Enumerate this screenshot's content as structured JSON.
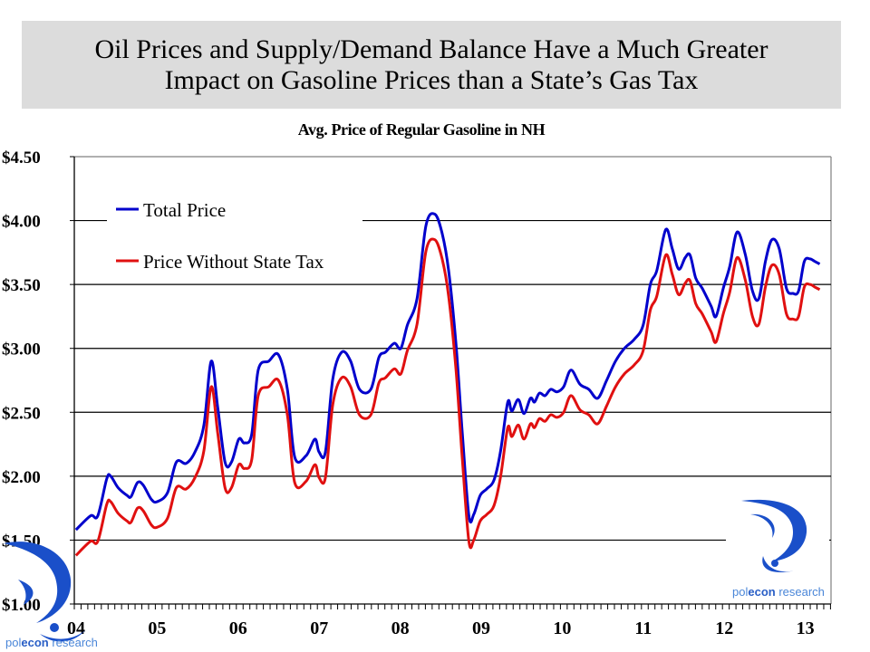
{
  "slide": {
    "title_line1": "Oil Prices and Supply/Demand Balance Have a Much Greater",
    "title_line2": "Impact on Gasoline Prices than a State’s Gas Tax"
  },
  "logo": {
    "text_light": "pol",
    "text_bold": "econ",
    "text_rest": " research",
    "color": "#1a4fc9"
  },
  "chart_data": {
    "type": "line",
    "title": "Avg. Price of Regular Gasoline in NH",
    "xlabel": "",
    "ylabel": "",
    "ylim": [
      1.0,
      4.5
    ],
    "xlim": [
      2004.0,
      2013.34
    ],
    "grid": true,
    "legend_position": "top-left",
    "y_ticks": [
      "$1.00",
      "$1.50",
      "$2.00",
      "$2.50",
      "$3.00",
      "$3.50",
      "$4.00",
      "$4.50"
    ],
    "y_tick_values": [
      1.0,
      1.5,
      2.0,
      2.5,
      3.0,
      3.5,
      4.0,
      4.5
    ],
    "x_ticks": [
      "04",
      "05",
      "06",
      "07",
      "08",
      "09",
      "10",
      "11",
      "12",
      "13"
    ],
    "x_tick_values": [
      2004,
      2005,
      2006,
      2007,
      2008,
      2009,
      2010,
      2011,
      2012,
      2013
    ],
    "state_tax_difference": 0.196,
    "series": [
      {
        "name": "Total Price",
        "color": "#0000cc",
        "x": [
          2004.02,
          2004.2,
          2004.29,
          2004.4,
          2004.45,
          2004.54,
          2004.65,
          2004.7,
          2004.78,
          2004.85,
          2004.95,
          2005.02,
          2005.15,
          2005.26,
          2005.38,
          2005.49,
          2005.6,
          2005.69,
          2005.77,
          2005.86,
          2005.94,
          2006.03,
          2006.1,
          2006.19,
          2006.27,
          2006.4,
          2006.52,
          2006.63,
          2006.72,
          2006.86,
          2006.97,
          2007.02,
          2007.1,
          2007.19,
          2007.3,
          2007.41,
          2007.52,
          2007.66,
          2007.76,
          2007.84,
          2007.95,
          2008.03,
          2008.11,
          2008.23,
          2008.34,
          2008.45,
          2008.54,
          2008.62,
          2008.71,
          2008.79,
          2008.87,
          2008.93,
          2009.01,
          2009.09,
          2009.18,
          2009.26,
          2009.35,
          2009.4,
          2009.48,
          2009.55,
          2009.63,
          2009.68,
          2009.74,
          2009.81,
          2009.88,
          2009.96,
          2010.04,
          2010.13,
          2010.24,
          2010.35,
          2010.46,
          2010.57,
          2010.68,
          2010.79,
          2010.91,
          2011.02,
          2011.11,
          2011.19,
          2011.3,
          2011.38,
          2011.46,
          2011.54,
          2011.6,
          2011.67,
          2011.75,
          2011.86,
          2011.92,
          2012.01,
          2012.09,
          2012.18,
          2012.28,
          2012.37,
          2012.45,
          2012.53,
          2012.61,
          2012.7,
          2012.79,
          2012.87,
          2012.94,
          2013.01,
          2013.08,
          2013.14,
          2013.2
        ],
        "values": [
          1.58,
          1.69,
          1.69,
          1.98,
          2.0,
          1.91,
          1.85,
          1.84,
          1.95,
          1.93,
          1.82,
          1.8,
          1.87,
          2.11,
          2.1,
          2.19,
          2.4,
          2.9,
          2.54,
          2.11,
          2.11,
          2.29,
          2.26,
          2.33,
          2.83,
          2.9,
          2.95,
          2.68,
          2.15,
          2.16,
          2.29,
          2.19,
          2.19,
          2.76,
          2.97,
          2.9,
          2.68,
          2.68,
          2.93,
          2.97,
          3.04,
          3.0,
          3.18,
          3.39,
          3.96,
          4.05,
          3.9,
          3.61,
          3.04,
          2.33,
          1.69,
          1.7,
          1.85,
          1.9,
          1.97,
          2.19,
          2.58,
          2.51,
          2.6,
          2.49,
          2.61,
          2.58,
          2.65,
          2.63,
          2.68,
          2.66,
          2.7,
          2.83,
          2.72,
          2.68,
          2.61,
          2.75,
          2.9,
          3.0,
          3.07,
          3.18,
          3.5,
          3.61,
          3.93,
          3.78,
          3.62,
          3.71,
          3.73,
          3.55,
          3.47,
          3.33,
          3.25,
          3.47,
          3.64,
          3.91,
          3.74,
          3.45,
          3.39,
          3.68,
          3.85,
          3.78,
          3.47,
          3.43,
          3.45,
          3.68,
          3.7,
          3.68,
          3.66
        ]
      },
      {
        "name": "Price Without State Tax",
        "color": "#e01010",
        "x": [
          2004.02,
          2004.2,
          2004.29,
          2004.4,
          2004.45,
          2004.54,
          2004.65,
          2004.7,
          2004.78,
          2004.85,
          2004.95,
          2005.02,
          2005.15,
          2005.26,
          2005.38,
          2005.49,
          2005.6,
          2005.69,
          2005.77,
          2005.86,
          2005.94,
          2006.03,
          2006.1,
          2006.19,
          2006.27,
          2006.4,
          2006.52,
          2006.63,
          2006.72,
          2006.86,
          2006.97,
          2007.02,
          2007.1,
          2007.19,
          2007.3,
          2007.41,
          2007.52,
          2007.66,
          2007.76,
          2007.84,
          2007.95,
          2008.03,
          2008.11,
          2008.23,
          2008.34,
          2008.45,
          2008.54,
          2008.62,
          2008.71,
          2008.79,
          2008.87,
          2008.93,
          2009.01,
          2009.09,
          2009.18,
          2009.26,
          2009.35,
          2009.4,
          2009.48,
          2009.55,
          2009.63,
          2009.68,
          2009.74,
          2009.81,
          2009.88,
          2009.96,
          2010.04,
          2010.13,
          2010.24,
          2010.35,
          2010.46,
          2010.57,
          2010.68,
          2010.79,
          2010.91,
          2011.02,
          2011.11,
          2011.19,
          2011.3,
          2011.38,
          2011.46,
          2011.54,
          2011.6,
          2011.67,
          2011.75,
          2011.86,
          2011.92,
          2012.01,
          2012.09,
          2012.18,
          2012.28,
          2012.37,
          2012.45,
          2012.53,
          2012.61,
          2012.7,
          2012.79,
          2012.87,
          2012.94,
          2013.01,
          2013.08,
          2013.14,
          2013.2
        ],
        "values": [
          1.38,
          1.49,
          1.49,
          1.78,
          1.8,
          1.71,
          1.65,
          1.64,
          1.75,
          1.73,
          1.62,
          1.6,
          1.67,
          1.91,
          1.9,
          1.99,
          2.2,
          2.7,
          2.34,
          1.91,
          1.91,
          2.09,
          2.06,
          2.13,
          2.63,
          2.7,
          2.75,
          2.48,
          1.95,
          1.96,
          2.09,
          1.99,
          1.99,
          2.56,
          2.77,
          2.7,
          2.48,
          2.48,
          2.73,
          2.77,
          2.84,
          2.8,
          2.98,
          3.19,
          3.76,
          3.85,
          3.7,
          3.41,
          2.84,
          2.13,
          1.49,
          1.5,
          1.65,
          1.7,
          1.77,
          1.99,
          2.38,
          2.31,
          2.4,
          2.29,
          2.41,
          2.38,
          2.45,
          2.43,
          2.48,
          2.46,
          2.5,
          2.63,
          2.52,
          2.48,
          2.41,
          2.55,
          2.7,
          2.8,
          2.87,
          2.98,
          3.3,
          3.41,
          3.73,
          3.58,
          3.42,
          3.51,
          3.53,
          3.35,
          3.27,
          3.13,
          3.05,
          3.27,
          3.44,
          3.71,
          3.54,
          3.25,
          3.19,
          3.48,
          3.65,
          3.58,
          3.27,
          3.23,
          3.25,
          3.48,
          3.5,
          3.48,
          3.46
        ]
      }
    ]
  }
}
